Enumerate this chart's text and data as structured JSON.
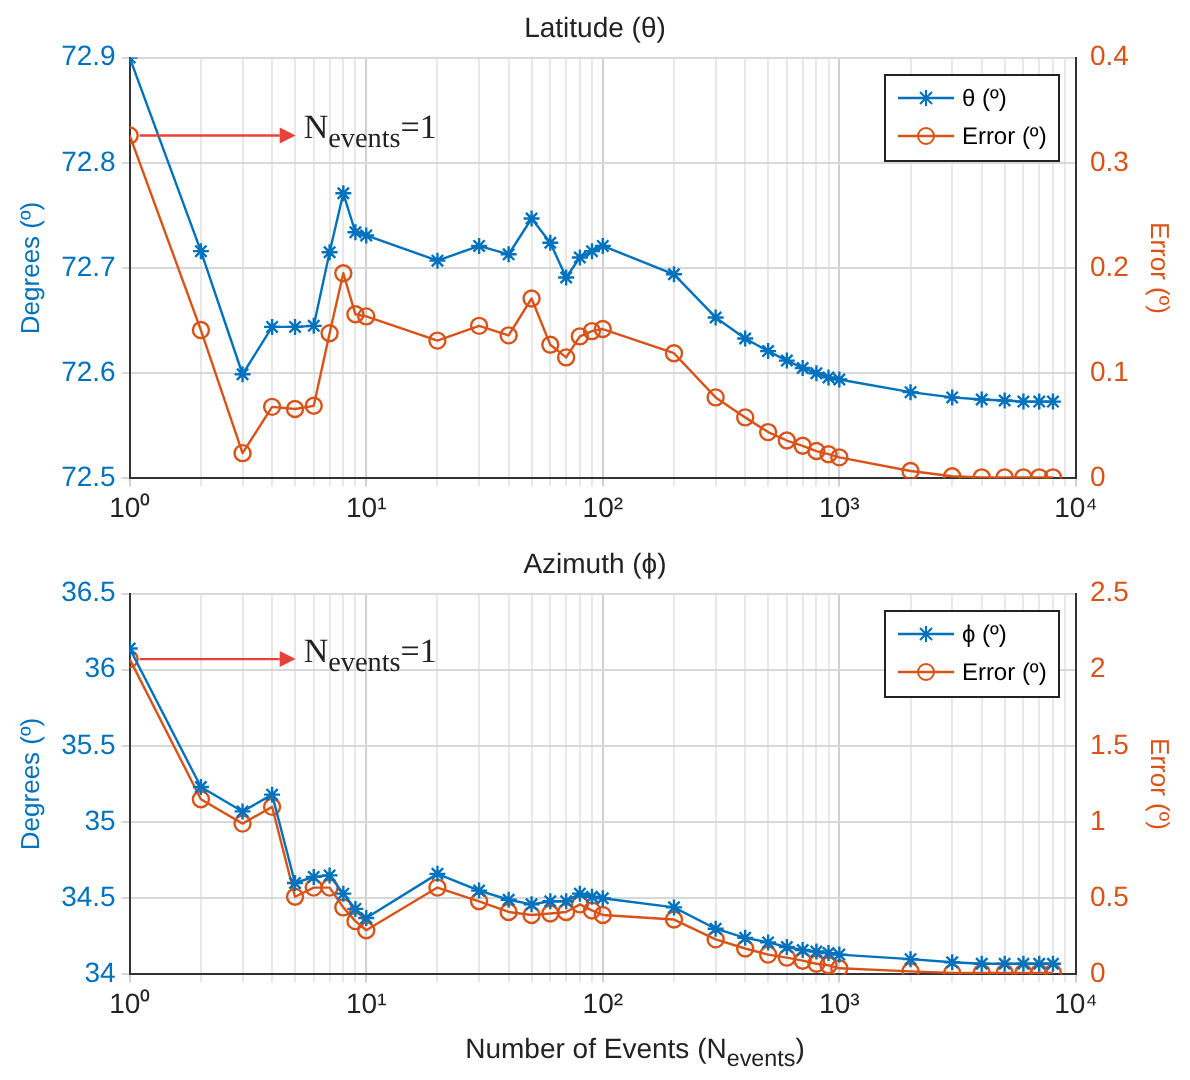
{
  "chart_data": [
    {
      "type": "line",
      "title": "Latitude (θ)",
      "ylabel": "Degrees (º)",
      "y2label": "Error (º)",
      "log": "x",
      "grid": true,
      "legend": "top right",
      "x": [
        1,
        2,
        3,
        4,
        5,
        6,
        7,
        8,
        9,
        10,
        20,
        30,
        40,
        50,
        60,
        70,
        80,
        90,
        100,
        200,
        300,
        400,
        500,
        600,
        700,
        800,
        900,
        1000,
        2000,
        3000,
        4000,
        5000,
        6000,
        7000,
        8000
      ],
      "series": [
        {
          "name": "θ (º)",
          "color": "#0072bd",
          "marker": "cross",
          "values": [
            72.9,
            72.716,
            72.599,
            72.644,
            72.644,
            72.645,
            72.715,
            72.771,
            72.734,
            72.731,
            72.707,
            72.721,
            72.713,
            72.747,
            72.724,
            72.691,
            72.71,
            72.716,
            72.721,
            72.694,
            72.653,
            72.633,
            72.621,
            72.612,
            72.605,
            72.6,
            72.596,
            72.594,
            72.582,
            72.577,
            72.575,
            72.574,
            72.573,
            72.573,
            72.573
          ]
        },
        {
          "name": "Error (º)",
          "color": "#d95319",
          "marker": "circle",
          "axis": "y2",
          "values": [
            0.326,
            0.141,
            0.024,
            0.068,
            0.066,
            0.069,
            0.138,
            0.195,
            0.156,
            0.154,
            0.131,
            0.145,
            0.136,
            0.171,
            0.127,
            0.115,
            0.135,
            0.14,
            0.142,
            0.119,
            0.077,
            0.058,
            0.044,
            0.036,
            0.031,
            0.026,
            0.023,
            0.02,
            0.007,
            0.002,
            0.001,
            0.001,
            0.001,
            0.001,
            0.001
          ]
        }
      ],
      "xlim": [
        1,
        10000
      ],
      "xticks": [
        {
          "value": 1,
          "label": "10⁰"
        },
        {
          "value": 2,
          "label": null
        },
        {
          "value": 3,
          "label": null
        },
        {
          "value": 4,
          "label": null
        },
        {
          "value": 5,
          "label": null
        },
        {
          "value": 6,
          "label": null
        },
        {
          "value": 7,
          "label": null
        },
        {
          "value": 8,
          "label": null
        },
        {
          "value": 9,
          "label": null
        },
        {
          "value": 10,
          "label": "10¹"
        },
        {
          "value": 20,
          "label": null
        },
        {
          "value": 30,
          "label": null
        },
        {
          "value": 40,
          "label": null
        },
        {
          "value": 50,
          "label": null
        },
        {
          "value": 60,
          "label": null
        },
        {
          "value": 70,
          "label": null
        },
        {
          "value": 80,
          "label": null
        },
        {
          "value": 90,
          "label": null
        },
        {
          "value": 100,
          "label": "10²"
        },
        {
          "value": 200,
          "label": null
        },
        {
          "value": 300,
          "label": null
        },
        {
          "value": 400,
          "label": null
        },
        {
          "value": 500,
          "label": null
        },
        {
          "value": 600,
          "label": null
        },
        {
          "value": 700,
          "label": null
        },
        {
          "value": 800,
          "label": null
        },
        {
          "value": 900,
          "label": null
        },
        {
          "value": 1000,
          "label": "10³"
        },
        {
          "value": 2000,
          "label": null
        },
        {
          "value": 3000,
          "label": null
        },
        {
          "value": 4000,
          "label": null
        },
        {
          "value": 5000,
          "label": null
        },
        {
          "value": 6000,
          "label": null
        },
        {
          "value": 7000,
          "label": null
        },
        {
          "value": 8000,
          "label": null
        },
        {
          "value": 9000,
          "label": null
        },
        {
          "value": 10000,
          "label": "10⁴"
        }
      ],
      "ylim": [
        72.5,
        72.9
      ],
      "yticks": [
        72.5,
        72.6,
        72.7,
        72.8,
        72.9
      ],
      "y2lim": [
        0,
        0.4
      ],
      "y2ticks": [
        0,
        0.1,
        0.2,
        0.3,
        0.4
      ],
      "annotations": [
        {
          "text": "N$_{events}$=1",
          "x": 1,
          "y": 72.826
        }
      ]
    },
    {
      "type": "line",
      "title": "Azimuth (ϕ)",
      "xlabel": "Number of Events (N$_{events}$)",
      "ylabel": "Degrees (º)",
      "y2label": "Error (º)",
      "log": "x",
      "grid": true,
      "legend": "top right",
      "x": [
        1,
        2,
        3,
        4,
        5,
        6,
        7,
        8,
        9,
        10,
        20,
        30,
        40,
        50,
        60,
        70,
        80,
        90,
        100,
        200,
        300,
        400,
        500,
        600,
        700,
        800,
        900,
        1000,
        2000,
        3000,
        4000,
        5000,
        6000,
        7000,
        8000
      ],
      "series": [
        {
          "name": "ϕ (º)",
          "color": "#0072bd",
          "marker": "cross",
          "values": [
            36.14,
            35.23,
            35.07,
            35.18,
            34.6,
            34.64,
            34.65,
            34.53,
            34.43,
            34.37,
            34.66,
            34.55,
            34.49,
            34.46,
            34.48,
            34.48,
            34.53,
            34.51,
            34.5,
            34.44,
            34.3,
            34.24,
            34.21,
            34.18,
            34.16,
            34.15,
            34.14,
            34.13,
            34.1,
            34.08,
            34.07,
            34.07,
            34.07,
            34.07,
            34.07
          ]
        },
        {
          "name": "Error (º)",
          "color": "#d95319",
          "marker": "circle",
          "axis": "y2",
          "values": [
            2.07,
            1.15,
            0.99,
            1.1,
            0.51,
            0.57,
            0.57,
            0.44,
            0.35,
            0.29,
            0.57,
            0.48,
            0.41,
            0.39,
            0.4,
            0.41,
            0.46,
            0.42,
            0.39,
            0.36,
            0.23,
            0.17,
            0.13,
            0.11,
            0.09,
            0.07,
            0.06,
            0.04,
            0.02,
            0.01,
            0.01,
            0.01,
            0.01,
            0.01,
            0.01
          ]
        }
      ],
      "xlim": [
        1,
        10000
      ],
      "xticks": [
        {
          "value": 1,
          "label": "10⁰"
        },
        {
          "value": 2,
          "label": null
        },
        {
          "value": 3,
          "label": null
        },
        {
          "value": 4,
          "label": null
        },
        {
          "value": 5,
          "label": null
        },
        {
          "value": 6,
          "label": null
        },
        {
          "value": 7,
          "label": null
        },
        {
          "value": 8,
          "label": null
        },
        {
          "value": 9,
          "label": null
        },
        {
          "value": 10,
          "label": "10¹"
        },
        {
          "value": 20,
          "label": null
        },
        {
          "value": 30,
          "label": null
        },
        {
          "value": 40,
          "label": null
        },
        {
          "value": 50,
          "label": null
        },
        {
          "value": 60,
          "label": null
        },
        {
          "value": 70,
          "label": null
        },
        {
          "value": 80,
          "label": null
        },
        {
          "value": 90,
          "label": null
        },
        {
          "value": 100,
          "label": "10²"
        },
        {
          "value": 200,
          "label": null
        },
        {
          "value": 300,
          "label": null
        },
        {
          "value": 400,
          "label": null
        },
        {
          "value": 500,
          "label": null
        },
        {
          "value": 600,
          "label": null
        },
        {
          "value": 700,
          "label": null
        },
        {
          "value": 800,
          "label": null
        },
        {
          "value": 900,
          "label": null
        },
        {
          "value": 1000,
          "label": "10³"
        },
        {
          "value": 2000,
          "label": null
        },
        {
          "value": 3000,
          "label": null
        },
        {
          "value": 4000,
          "label": null
        },
        {
          "value": 5000,
          "label": null
        },
        {
          "value": 6000,
          "label": null
        },
        {
          "value": 7000,
          "label": null
        },
        {
          "value": 8000,
          "label": null
        },
        {
          "value": 9000,
          "label": null
        },
        {
          "value": 10000,
          "label": "10⁴"
        }
      ],
      "ylim": [
        34,
        36.5
      ],
      "yticks": [
        34,
        34.5,
        35,
        35.5,
        36,
        36.5
      ],
      "y2lim": [
        0,
        2.5
      ],
      "y2ticks": [
        0,
        0.5,
        1,
        1.5,
        2,
        2.5
      ],
      "annotations": [
        {
          "text": "N$_{events}$=1",
          "x": 1,
          "y": 36.07
        }
      ]
    }
  ]
}
